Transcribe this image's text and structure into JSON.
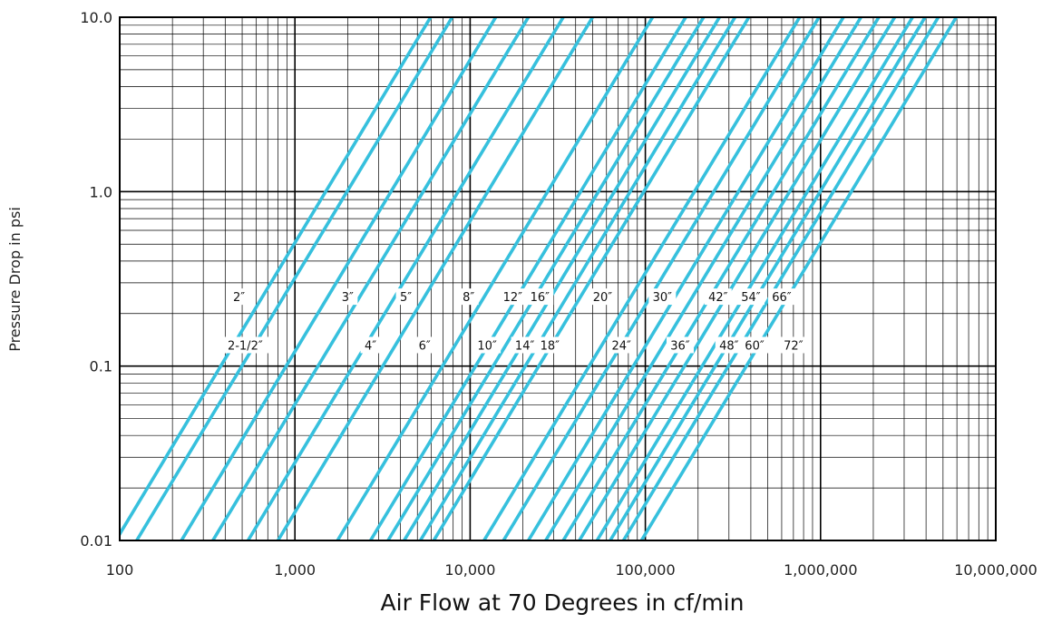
{
  "chart_data": {
    "type": "line",
    "title": "",
    "xlabel": "Air Flow at 70 Degrees in cf/min",
    "ylabel": "Pressure Drop in psi",
    "x_scale": "log",
    "y_scale": "log",
    "xlim": [
      100,
      10000000
    ],
    "ylim": [
      0.01,
      10
    ],
    "grid": true,
    "line_color": "#36c0dd",
    "x_ticks": [
      {
        "value": 100,
        "label": "100"
      },
      {
        "value": 1000,
        "label": "1,000"
      },
      {
        "value": 10000,
        "label": "10,000"
      },
      {
        "value": 100000,
        "label": "100,000"
      },
      {
        "value": 1000000,
        "label": "1,000,000"
      },
      {
        "value": 10000000,
        "label": "10,000,000"
      }
    ],
    "y_ticks": [
      {
        "value": 0.01,
        "label": "0.01"
      },
      {
        "value": 0.1,
        "label": "0.1"
      },
      {
        "value": 1,
        "label": "1.0"
      },
      {
        "value": 10,
        "label": "10.0"
      }
    ],
    "series": [
      {
        "name": "2″",
        "x": [
          95,
          5950
        ]
      },
      {
        "name": "2-1/2″",
        "x": [
          125,
          7900
        ]
      },
      {
        "name": "3″",
        "x": [
          225,
          14000
        ]
      },
      {
        "name": "4″",
        "x": [
          340,
          21500
        ]
      },
      {
        "name": "5″",
        "x": [
          540,
          34000
        ]
      },
      {
        "name": "6″",
        "x": [
          800,
          50000
        ]
      },
      {
        "name": "8″",
        "x": [
          1750,
          110000
        ]
      },
      {
        "name": "10″",
        "x": [
          2700,
          170000
        ]
      },
      {
        "name": "12″",
        "x": [
          3400,
          215000
        ]
      },
      {
        "name": "14″",
        "x": [
          4200,
          265000
        ]
      },
      {
        "name": "16″",
        "x": [
          5200,
          325000
        ]
      },
      {
        "name": "18″",
        "x": [
          6200,
          390000
        ]
      },
      {
        "name": "20″",
        "x": [
          12000,
          760000
        ]
      },
      {
        "name": "24″",
        "x": [
          15500,
          980000
        ]
      },
      {
        "name": "30″",
        "x": [
          21500,
          1350000
        ]
      },
      {
        "name": "36″",
        "x": [
          27000,
          1700000
        ]
      },
      {
        "name": "42″",
        "x": [
          34000,
          2150000
        ]
      },
      {
        "name": "48″",
        "x": [
          42000,
          2650000
        ]
      },
      {
        "name": "54″",
        "x": [
          53000,
          3350000
        ]
      },
      {
        "name": "60″",
        "x": [
          63000,
          3950000
        ]
      },
      {
        "name": "66″",
        "x": [
          75000,
          4700000
        ]
      },
      {
        "name": "72″",
        "x": [
          95000,
          5950000
        ]
      }
    ],
    "series_y": [
      0.01,
      10
    ],
    "labels": [
      {
        "text": "2″",
        "x": 480,
        "y": 0.25
      },
      {
        "text": "2-1/2″",
        "x": 520,
        "y": 0.132
      },
      {
        "text": "3″",
        "x": 2000,
        "y": 0.25
      },
      {
        "text": "4″",
        "x": 2700,
        "y": 0.132
      },
      {
        "text": "5″",
        "x": 4300,
        "y": 0.25
      },
      {
        "text": "6″",
        "x": 5500,
        "y": 0.132
      },
      {
        "text": "8″",
        "x": 9800,
        "y": 0.25
      },
      {
        "text": "10″",
        "x": 12500,
        "y": 0.132
      },
      {
        "text": "12″",
        "x": 17500,
        "y": 0.25
      },
      {
        "text": "14″",
        "x": 20500,
        "y": 0.132
      },
      {
        "text": "16″",
        "x": 25000,
        "y": 0.25
      },
      {
        "text": "18″",
        "x": 28500,
        "y": 0.132
      },
      {
        "text": "20″",
        "x": 57000,
        "y": 0.25
      },
      {
        "text": "24″",
        "x": 73000,
        "y": 0.132
      },
      {
        "text": "30″",
        "x": 125000,
        "y": 0.25
      },
      {
        "text": "36″",
        "x": 158000,
        "y": 0.132
      },
      {
        "text": "42″",
        "x": 260000,
        "y": 0.25
      },
      {
        "text": "48″",
        "x": 300000,
        "y": 0.132
      },
      {
        "text": "54″",
        "x": 400000,
        "y": 0.25
      },
      {
        "text": "60″",
        "x": 420000,
        "y": 0.132
      },
      {
        "text": "66″",
        "x": 600000,
        "y": 0.25
      },
      {
        "text": "72″",
        "x": 700000,
        "y": 0.132
      }
    ]
  }
}
